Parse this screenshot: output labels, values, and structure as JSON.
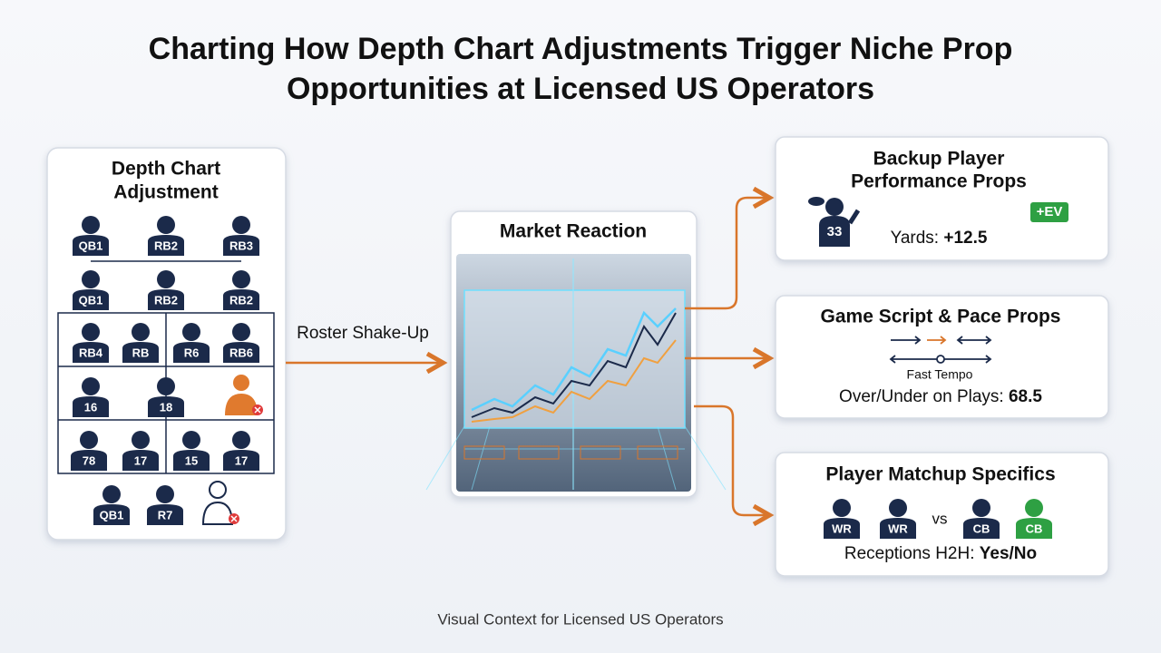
{
  "title": "Charting How Depth Chart Adjustments Trigger Niche Prop Opportunities at Licensed US Operators",
  "depth_chart": {
    "title": "Depth Chart Adjustment",
    "rows": [
      [
        "QB1",
        "RB2",
        "RB3"
      ],
      [
        "QB1",
        "RB2",
        "RB2"
      ],
      [
        "RB4",
        "RB",
        "R6",
        "RB6"
      ],
      [
        "16",
        "18"
      ],
      [
        "78",
        "17",
        "15",
        "17"
      ],
      [
        "QB1",
        "R7"
      ]
    ]
  },
  "connector_label": "Roster Shake-Up",
  "market": {
    "title": "Market Reaction"
  },
  "cards": [
    {
      "title": "Backup Player Performance Props",
      "badge": "+EV",
      "jersey": "33",
      "metric_label": "Yards:",
      "metric_value": "+12.5"
    },
    {
      "title": "Game Script & Pace Props",
      "caption": "Fast Tempo",
      "metric_label": "Over/Under on Plays:",
      "metric_value": "68.5"
    },
    {
      "title": "Player Matchup Specifics",
      "players": [
        "WR",
        "WR",
        "CB",
        "CB"
      ],
      "vs": "vs",
      "metric_label": "Receptions H2H:",
      "metric_value": "Yes/No"
    }
  ],
  "footer": "Visual Context for Licensed US Operators"
}
